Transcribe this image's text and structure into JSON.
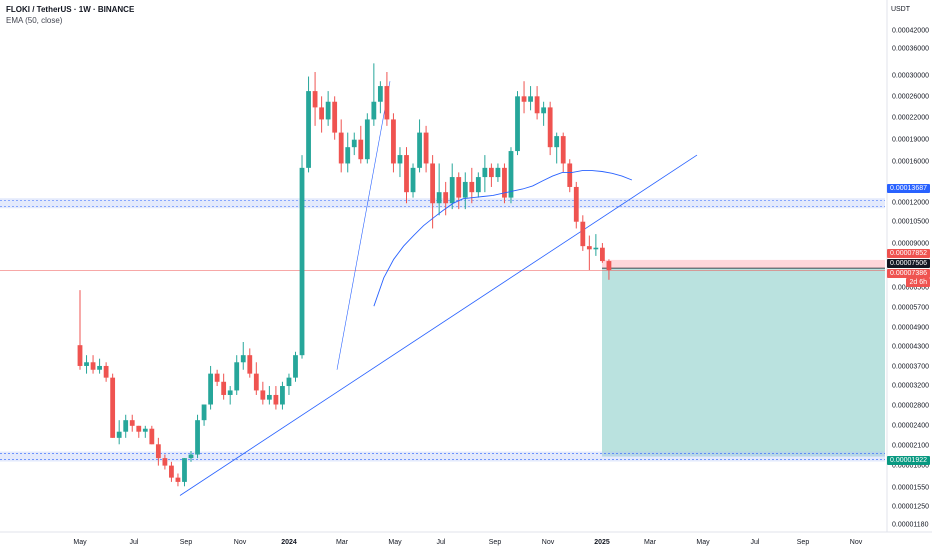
{
  "header": {
    "symbol": "FLOKI / TetherUS · 1W · BINANCE",
    "indicator": "EMA (50, close)",
    "currency": "USDT"
  },
  "colors": {
    "up": "#26a69a",
    "down": "#ef5350",
    "ema": "#2962ff",
    "zone": "#b2c4f5",
    "target": "#b2dfdb",
    "stop": "#ffcdd2"
  },
  "y_axis": {
    "scale": "log",
    "ticks": [
      "0.00042000",
      "0.00036000",
      "0.00030000",
      "0.00026000",
      "0.00022000",
      "0.00019000",
      "0.00016000",
      "0.00012000",
      "0.00010500",
      "0.00009000",
      "0.00006500",
      "0.00005700",
      "0.00004900",
      "0.00004300",
      "0.00003700",
      "0.00003200",
      "0.00002800",
      "0.00002400",
      "0.00002100",
      "0.00001800",
      "0.00001550",
      "0.00001250",
      "0.00001180"
    ]
  },
  "x_axis": {
    "ticks": [
      "May",
      "Jul",
      "Sep",
      "Nov",
      "2024",
      "Mar",
      "May",
      "Jul",
      "Sep",
      "Nov",
      "2025",
      "Mar",
      "May",
      "Jul",
      "Sep",
      "Nov"
    ]
  },
  "price_labels": [
    {
      "text": "0.00013687",
      "bg": "#2962ff",
      "fg": "#ffffff"
    },
    {
      "text": "0.00007852",
      "bg": "#ef5350",
      "fg": "#ffffff"
    },
    {
      "text": "0.00007506",
      "bg": "#131722",
      "fg": "#ffffff"
    },
    {
      "text": "0.00007386",
      "bg": "#ef5350",
      "fg": "#ffffff"
    },
    {
      "text": "2d 6h",
      "bg": "#ef5350",
      "fg": "#ffffff"
    },
    {
      "text": "0.00001922",
      "bg": "#089981",
      "fg": "#ffffff"
    }
  ],
  "chart_data": {
    "type": "candlestick",
    "interval": "1W",
    "ohlc": [
      [
        4.3e-05,
        6.4e-05,
        3.6e-05,
        3.7e-05
      ],
      [
        3.7e-05,
        4e-05,
        3.5e-05,
        3.8e-05
      ],
      [
        3.8e-05,
        4e-05,
        3.5e-05,
        3.6e-05
      ],
      [
        3.6e-05,
        3.9e-05,
        3.5e-05,
        3.7e-05
      ],
      [
        3.7e-05,
        3.8e-05,
        3.3e-05,
        3.4e-05
      ],
      [
        3.4e-05,
        3.5e-05,
        2.2e-05,
        2.2e-05
      ],
      [
        2.2e-05,
        2.5e-05,
        2.1e-05,
        2.3e-05
      ],
      [
        2.3e-05,
        2.6e-05,
        2.2e-05,
        2.5e-05
      ],
      [
        2.5e-05,
        2.6e-05,
        2.3e-05,
        2.4e-05
      ],
      [
        2.4e-05,
        2.4e-05,
        2.2e-05,
        2.3e-05
      ],
      [
        2.3e-05,
        2.4e-05,
        2.2e-05,
        2.35e-05
      ],
      [
        2.35e-05,
        2.4e-05,
        2.1e-05,
        2.1e-05
      ],
      [
        2.1e-05,
        2.2e-05,
        1.8e-05,
        1.9e-05
      ],
      [
        1.9e-05,
        1.95e-05,
        1.75e-05,
        1.8e-05
      ],
      [
        1.8e-05,
        1.85e-05,
        1.6e-05,
        1.65e-05
      ],
      [
        1.65e-05,
        1.7e-05,
        1.55e-05,
        1.6e-05
      ],
      [
        1.6e-05,
        1.9e-05,
        1.55e-05,
        1.9e-05
      ],
      [
        1.9e-05,
        2e-05,
        1.85e-05,
        1.95e-05
      ],
      [
        1.95e-05,
        2.6e-05,
        1.9e-05,
        2.5e-05
      ],
      [
        2.5e-05,
        2.8e-05,
        2.4e-05,
        2.8e-05
      ],
      [
        2.8e-05,
        3.7e-05,
        2.7e-05,
        3.5e-05
      ],
      [
        3.5e-05,
        3.6e-05,
        3.2e-05,
        3.3e-05
      ],
      [
        3.3e-05,
        3.5e-05,
        2.9e-05,
        3e-05
      ],
      [
        3e-05,
        3.2e-05,
        2.8e-05,
        3.1e-05
      ],
      [
        3.1e-05,
        4e-05,
        3e-05,
        3.8e-05
      ],
      [
        3.8e-05,
        4.4e-05,
        3.6e-05,
        4e-05
      ],
      [
        4e-05,
        4.2e-05,
        3.4e-05,
        3.5e-05
      ],
      [
        3.5e-05,
        3.8e-05,
        3e-05,
        3.1e-05
      ],
      [
        3.1e-05,
        3.3e-05,
        2.8e-05,
        2.9e-05
      ],
      [
        2.9e-05,
        3.2e-05,
        2.8e-05,
        3e-05
      ],
      [
        3e-05,
        3.2e-05,
        2.7e-05,
        2.8e-05
      ],
      [
        2.8e-05,
        3.3e-05,
        2.7e-05,
        3.2e-05
      ],
      [
        3.2e-05,
        3.5e-05,
        3e-05,
        3.4e-05
      ],
      [
        3.4e-05,
        4.1e-05,
        3.3e-05,
        4e-05
      ],
      [
        4e-05,
        0.00017,
        3.9e-05,
        0.000155
      ],
      [
        0.000155,
        0.0003,
        0.00015,
        0.00027
      ],
      [
        0.00027,
        0.00031,
        0.00021,
        0.00024
      ],
      [
        0.00024,
        0.00026,
        0.0002,
        0.00022
      ],
      [
        0.00022,
        0.00027,
        0.00021,
        0.00025
      ],
      [
        0.00025,
        0.00026,
        0.00019,
        0.0002
      ],
      [
        0.0002,
        0.00022,
        0.00015,
        0.00016
      ],
      [
        0.00016,
        0.0002,
        0.00015,
        0.00018
      ],
      [
        0.00018,
        0.0002,
        0.00017,
        0.00019
      ],
      [
        0.00019,
        0.00021,
        0.00016,
        0.000165
      ],
      [
        0.000165,
        0.00023,
        0.00016,
        0.00022
      ],
      [
        0.00022,
        0.00033,
        0.00021,
        0.00025
      ],
      [
        0.00025,
        0.00029,
        0.00023,
        0.00028
      ],
      [
        0.00028,
        0.00031,
        0.00021,
        0.00022
      ],
      [
        0.00022,
        0.00023,
        0.00015,
        0.00016
      ],
      [
        0.00016,
        0.00018,
        0.000145,
        0.00017
      ],
      [
        0.00017,
        0.00018,
        0.00012,
        0.00013
      ],
      [
        0.00013,
        0.00016,
        0.000125,
        0.000155
      ],
      [
        0.000155,
        0.00022,
        0.00015,
        0.0002
      ],
      [
        0.0002,
        0.00021,
        0.00015,
        0.00016
      ],
      [
        0.00016,
        0.00017,
        0.0001,
        0.00012
      ],
      [
        0.00012,
        0.00016,
        0.00011,
        0.00013
      ],
      [
        0.00013,
        0.00014,
        0.00011,
        0.00012
      ],
      [
        0.00012,
        0.00016,
        0.000115,
        0.000145
      ],
      [
        0.000145,
        0.00015,
        0.000115,
        0.000125
      ],
      [
        0.000125,
        0.00015,
        0.000115,
        0.00014
      ],
      [
        0.00014,
        0.000155,
        0.00012,
        0.00013
      ],
      [
        0.00013,
        0.00015,
        0.000125,
        0.000145
      ],
      [
        0.000145,
        0.00017,
        0.00013,
        0.000155
      ],
      [
        0.000155,
        0.00016,
        0.000135,
        0.000145
      ],
      [
        0.000145,
        0.00016,
        0.00014,
        0.000155
      ],
      [
        0.000155,
        0.00016,
        0.00012,
        0.000125
      ],
      [
        0.000125,
        0.00018,
        0.00012,
        0.000175
      ],
      [
        0.000175,
        0.00027,
        0.00017,
        0.00026
      ],
      [
        0.00026,
        0.00029,
        0.00023,
        0.00025
      ],
      [
        0.00025,
        0.00028,
        0.000235,
        0.00026
      ],
      [
        0.00026,
        0.00028,
        0.00022,
        0.00023
      ],
      [
        0.00023,
        0.00025,
        0.00021,
        0.00024
      ],
      [
        0.00024,
        0.00025,
        0.00017,
        0.00018
      ],
      [
        0.00018,
        0.0002,
        0.00016,
        0.000195
      ],
      [
        0.000195,
        0.0002,
        0.00015,
        0.00016
      ],
      [
        0.00016,
        0.000165,
        0.00013,
        0.000135
      ],
      [
        0.000135,
        0.00014,
        0.0001,
        0.000105
      ],
      [
        0.000105,
        0.00011,
        8.5e-05,
        8.8e-05
      ],
      [
        8.8e-05,
        9.5e-05,
        7.4e-05,
        8.6e-05
      ],
      [
        8.6e-05,
        9.6e-05,
        8.2e-05,
        8.7e-05
      ],
      [
        8.7e-05,
        9e-05,
        7.8e-05,
        7.9e-05
      ],
      [
        7.9e-05,
        8e-05,
        6.9e-05,
        7.4e-05
      ]
    ],
    "ema50": [
      5.7e-05,
      7e-05,
      8e-05,
      8.8e-05,
      9.5e-05,
      0.000102,
      0.000108,
      0.000114,
      0.00012,
      0.000124,
      0.000125,
      0.000126,
      0.000127,
      0.000129,
      0.000131,
      0.000133,
      0.000136,
      0.000141,
      0.000146,
      0.00015,
      0.00015,
      0.000152,
      0.000152,
      0.000151,
      0.000149,
      0.000146,
      0.000142
    ],
    "horizontal_levels": [
      0.00012,
      1.922e-05,
      7.506e-05
    ],
    "trendline": {
      "from": [
        1.45e-05
      ],
      "to": [
        0.00017
      ]
    },
    "target_price": 1.922e-05,
    "entry_price": 7.506e-05
  }
}
